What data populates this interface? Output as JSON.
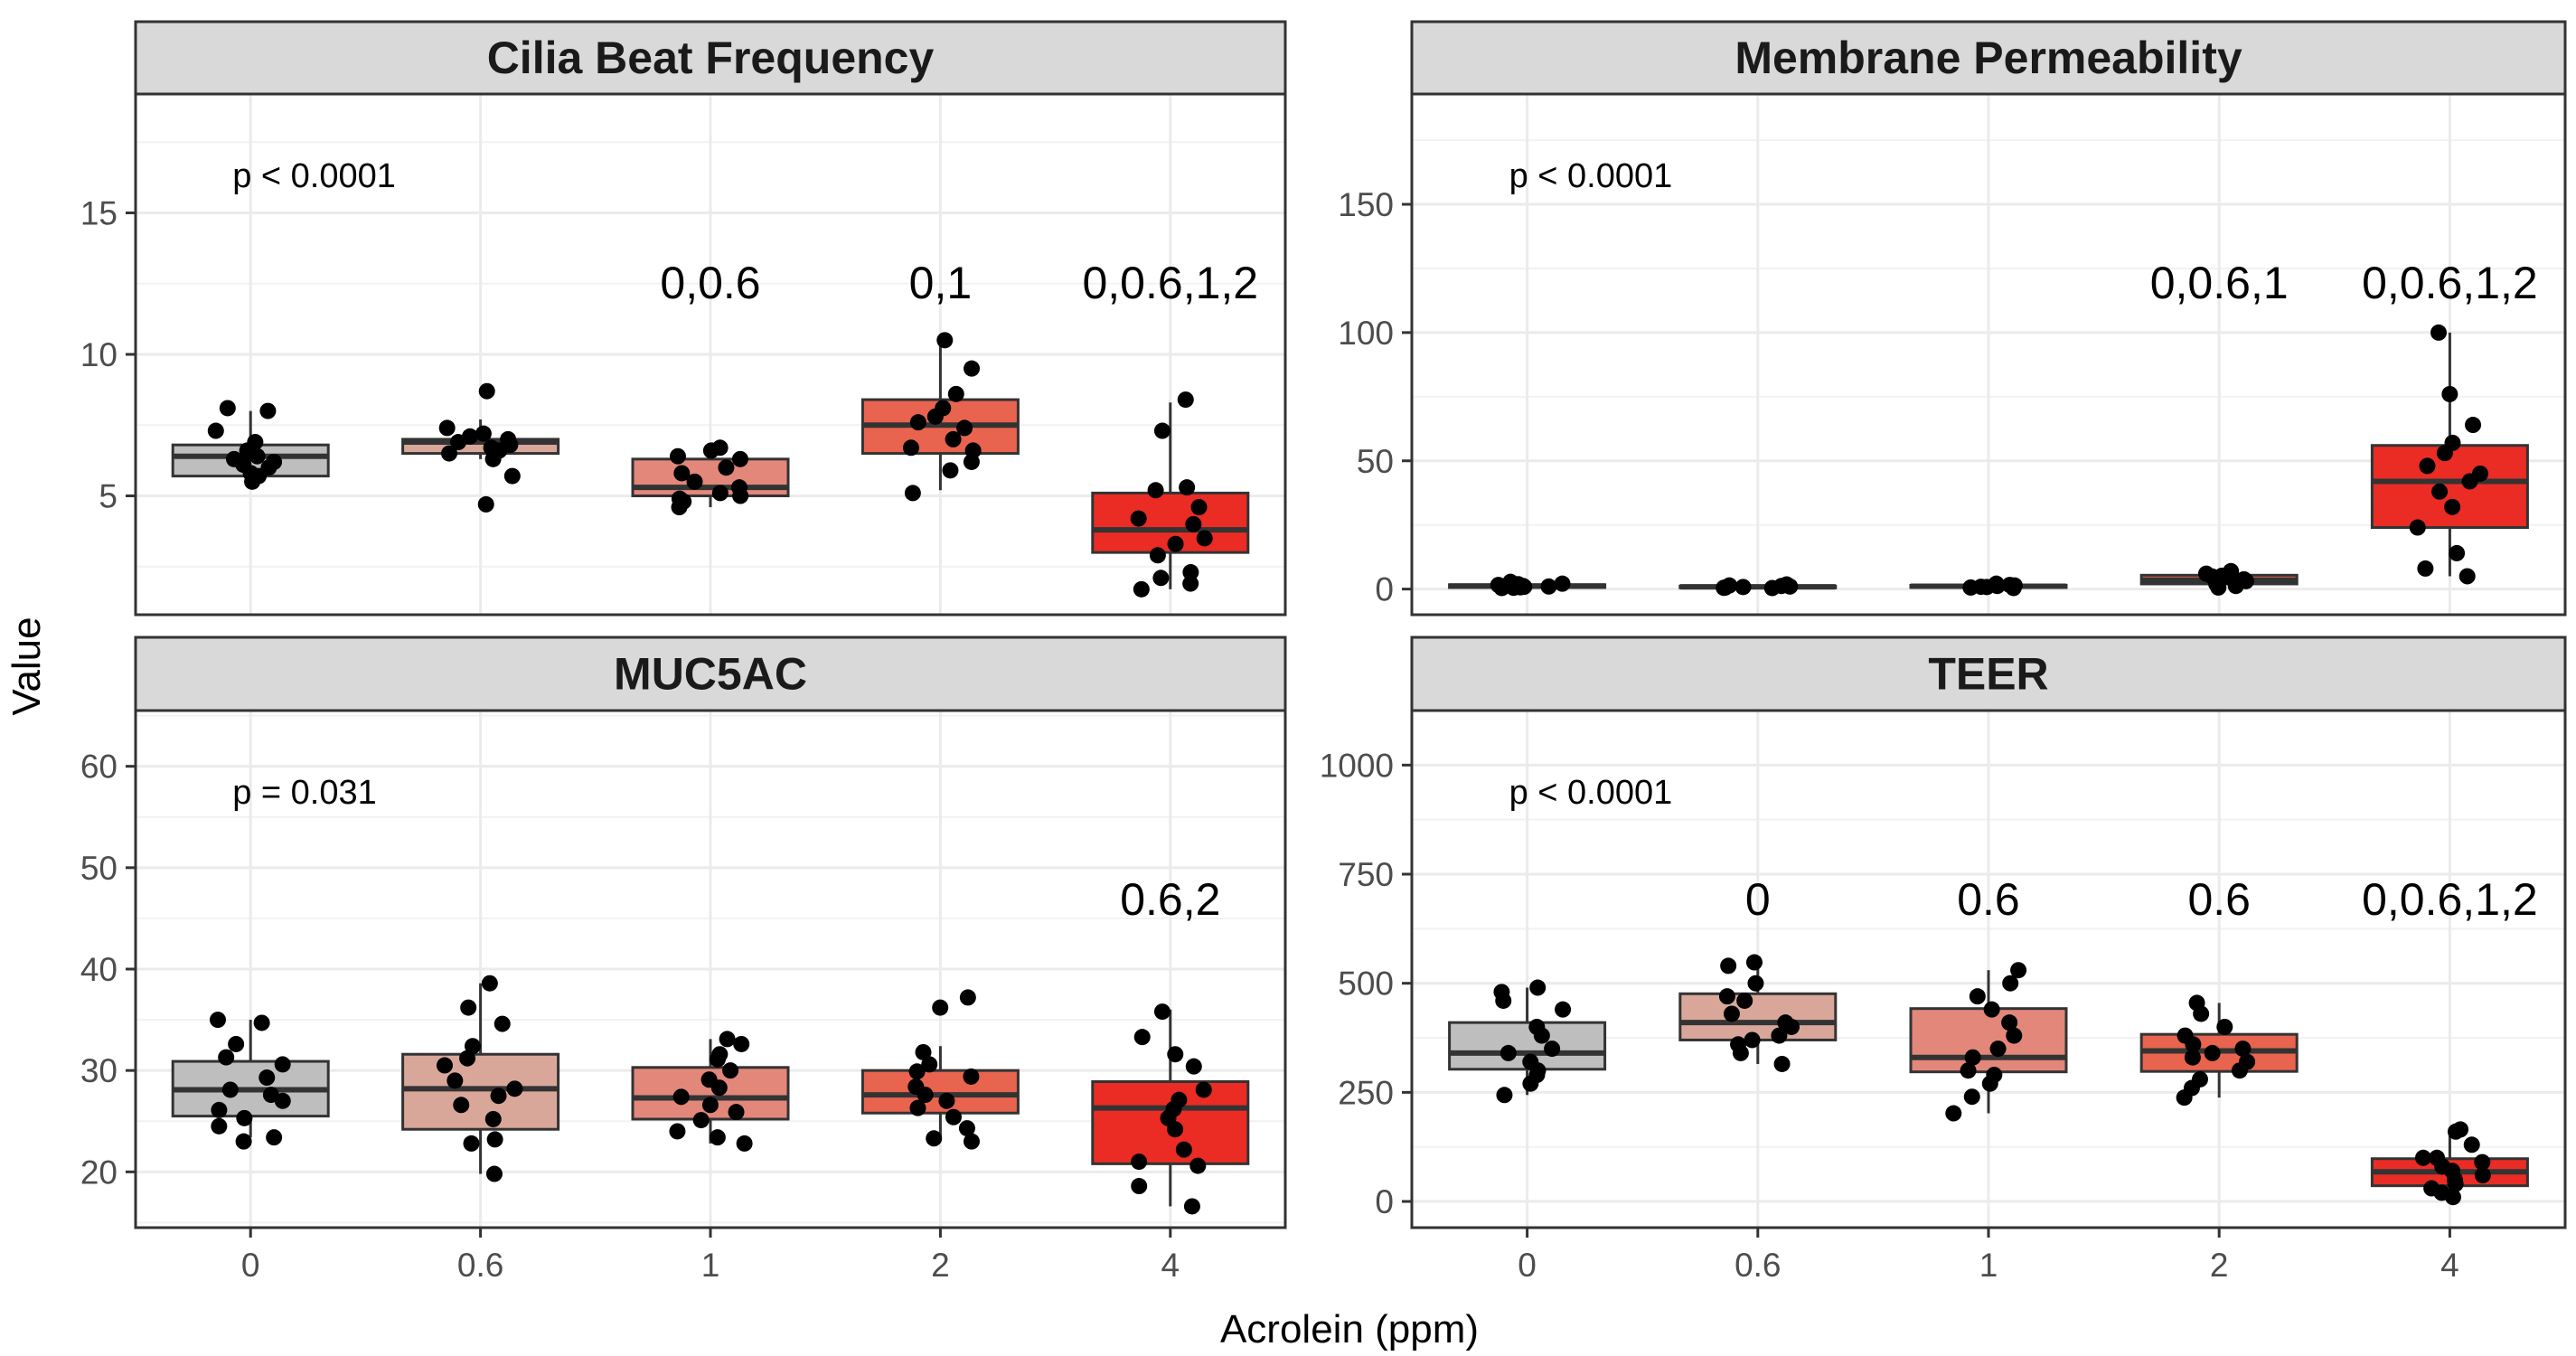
{
  "chart_data": {
    "type": "box",
    "xlabel": "Acrolein (ppm)",
    "ylabel": "Value",
    "categories": [
      "0",
      "0.6",
      "1",
      "2",
      "4"
    ],
    "fill_colors": [
      "#bebebe",
      "#d9a79a",
      "#e2877a",
      "#e8644f",
      "#ea2c25"
    ],
    "panels": [
      {
        "title": "Cilia Beat Frequency",
        "ylim": [
          0.8,
          19.2
        ],
        "yticks": [
          5,
          10,
          15
        ],
        "ytick_labels": [
          "5",
          "10",
          "15"
        ],
        "pvalue": "p < 0.0001",
        "group_labels": [
          "",
          "",
          "0,0.6",
          "0,1",
          "0,0.6,1,2"
        ],
        "boxes": [
          {
            "q1": 5.7,
            "median": 6.4,
            "q3": 6.8,
            "whisker_low": 5.4,
            "whisker_high": 8.0
          },
          {
            "q1": 6.5,
            "median": 6.9,
            "q3": 7.0,
            "whisker_low": 6.3,
            "whisker_high": 7.7
          },
          {
            "q1": 5.0,
            "median": 5.3,
            "q3": 6.3,
            "whisker_low": 4.6,
            "whisker_high": 6.7
          },
          {
            "q1": 6.5,
            "median": 7.5,
            "q3": 8.4,
            "whisker_low": 5.2,
            "whisker_high": 10.4
          },
          {
            "q1": 3.0,
            "median": 3.8,
            "q3": 5.1,
            "whisker_low": 1.7,
            "whisker_high": 8.3
          }
        ],
        "points": [
          [
            8.1,
            8.0,
            6.9,
            6.6,
            6.3,
            6.2,
            6.0,
            5.8,
            5.5,
            6.5,
            7.3,
            6.4,
            5.7,
            6.1
          ],
          [
            8.7,
            7.4,
            7.1,
            7.0,
            6.9,
            6.8,
            6.7,
            6.6,
            6.5,
            6.3,
            5.7,
            4.7,
            7.2
          ],
          [
            6.7,
            6.6,
            6.3,
            6.0,
            5.8,
            5.5,
            5.3,
            5.1,
            5.0,
            4.9,
            4.8,
            4.6,
            6.4
          ],
          [
            10.5,
            9.5,
            8.6,
            8.1,
            7.8,
            7.4,
            7.0,
            6.7,
            6.6,
            6.2,
            5.9,
            5.1,
            7.6
          ],
          [
            8.4,
            7.3,
            5.3,
            5.2,
            4.2,
            4.0,
            3.5,
            3.3,
            2.9,
            2.3,
            2.1,
            1.9,
            1.7,
            4.6
          ]
        ]
      },
      {
        "title": "Membrane Permeability",
        "ylim": [
          -10,
          193
        ],
        "yticks": [
          0,
          50,
          100,
          150
        ],
        "ytick_labels": [
          "0",
          "50",
          "100",
          "150"
        ],
        "pvalue": "p < 0.0001",
        "group_labels": [
          "",
          "",
          "",
          "0,0.6,1",
          "0,0.6,1,2"
        ],
        "boxes": [
          {
            "q1": 0.6,
            "median": 1.2,
            "q3": 1.7,
            "whisker_low": 0.3,
            "whisker_high": 2.8
          },
          {
            "q1": 0.5,
            "median": 0.9,
            "q3": 1.2,
            "whisker_low": 0.3,
            "whisker_high": 1.8
          },
          {
            "q1": 0.6,
            "median": 1.1,
            "q3": 1.5,
            "whisker_low": 0.3,
            "whisker_high": 2.1
          },
          {
            "q1": 2.0,
            "median": 3.5,
            "q3": 5.4,
            "whisker_low": 0.6,
            "whisker_high": 7.0
          },
          {
            "q1": 24,
            "median": 42,
            "q3": 56,
            "whisker_low": 5,
            "whisker_high": 100
          }
        ],
        "points": [
          [
            2.8,
            2.1,
            1.6,
            1.2,
            1.0,
            0.7,
            0.5,
            0.4,
            1.9,
            0.9
          ],
          [
            1.8,
            1.4,
            1.0,
            0.8,
            0.6,
            0.4,
            1.2,
            0.5
          ],
          [
            2.1,
            1.6,
            1.2,
            0.9,
            0.6,
            0.4,
            1.4,
            0.8
          ],
          [
            7.0,
            6.0,
            5.2,
            4.4,
            3.8,
            3.1,
            2.6,
            1.8,
            1.2,
            0.6,
            4.9,
            2.2
          ],
          [
            100,
            76,
            64,
            57,
            53,
            48,
            45,
            42,
            38,
            32,
            24,
            14,
            8,
            5
          ]
        ]
      },
      {
        "title": "MUC5AC",
        "ylim": [
          14.5,
          65.5
        ],
        "yticks": [
          20,
          30,
          40,
          50,
          60
        ],
        "ytick_labels": [
          "20",
          "30",
          "40",
          "50",
          "60"
        ],
        "pvalue": "p = 0.031",
        "group_labels": [
          "",
          "",
          "",
          "",
          "0.6,2"
        ],
        "boxes": [
          {
            "q1": 25.5,
            "median": 28.1,
            "q3": 30.9,
            "whisker_low": 23.4,
            "whisker_high": 35.0
          },
          {
            "q1": 24.2,
            "median": 28.2,
            "q3": 31.6,
            "whisker_low": 19.8,
            "whisker_high": 38.6
          },
          {
            "q1": 25.2,
            "median": 27.3,
            "q3": 30.3,
            "whisker_low": 22.8,
            "whisker_high": 33.1
          },
          {
            "q1": 25.8,
            "median": 27.6,
            "q3": 30.0,
            "whisker_low": 23.3,
            "whisker_high": 32.4
          },
          {
            "q1": 20.8,
            "median": 26.3,
            "q3": 28.9,
            "whisker_low": 16.6,
            "whisker_high": 36.0
          }
        ],
        "points": [
          [
            35.0,
            34.7,
            32.6,
            31.3,
            30.6,
            29.3,
            28.1,
            27.6,
            27.0,
            26.1,
            25.3,
            24.5,
            23.4,
            23.0
          ],
          [
            38.6,
            36.2,
            34.6,
            32.4,
            31.2,
            30.5,
            29.0,
            28.2,
            27.5,
            26.6,
            25.2,
            23.2,
            22.8,
            19.8
          ],
          [
            33.1,
            32.6,
            31.6,
            31.1,
            30.0,
            29.1,
            28.3,
            27.4,
            26.6,
            25.9,
            25.1,
            24.0,
            23.4,
            22.8
          ],
          [
            37.2,
            36.2,
            31.8,
            30.6,
            29.9,
            29.4,
            28.4,
            27.6,
            27.0,
            26.3,
            25.4,
            24.3,
            23.3,
            23.0
          ],
          [
            35.8,
            33.3,
            31.6,
            30.4,
            28.1,
            27.1,
            26.2,
            25.3,
            24.2,
            22.2,
            21.0,
            20.6,
            18.6,
            16.6
          ]
        ]
      },
      {
        "title": "TEER",
        "ylim": [
          -60,
          1125
        ],
        "yticks": [
          0,
          250,
          500,
          750,
          1000
        ],
        "ytick_labels": [
          "0",
          "250",
          "500",
          "750",
          "1000"
        ],
        "pvalue": "p < 0.0001",
        "group_labels": [
          "",
          "0",
          "0.6",
          "0.6",
          "0,0.6,1,2"
        ],
        "boxes": [
          {
            "q1": 303,
            "median": 340,
            "q3": 410,
            "whisker_low": 244,
            "whisker_high": 490
          },
          {
            "q1": 370,
            "median": 410,
            "q3": 476,
            "whisker_low": 315,
            "whisker_high": 548
          },
          {
            "q1": 297,
            "median": 330,
            "q3": 442,
            "whisker_low": 202,
            "whisker_high": 530
          },
          {
            "q1": 298,
            "median": 345,
            "q3": 383,
            "whisker_low": 238,
            "whisker_high": 455
          },
          {
            "q1": 36,
            "median": 68,
            "q3": 98,
            "whisker_low": 10,
            "whisker_high": 165
          }
        ],
        "points": [
          [
            490,
            480,
            460,
            440,
            380,
            350,
            340,
            320,
            300,
            290,
            270,
            244,
            400
          ],
          [
            548,
            540,
            500,
            470,
            460,
            410,
            400,
            380,
            370,
            360,
            340,
            315,
            430
          ],
          [
            530,
            500,
            470,
            440,
            380,
            350,
            330,
            300,
            290,
            270,
            240,
            202,
            410
          ],
          [
            455,
            430,
            400,
            380,
            360,
            350,
            340,
            330,
            320,
            300,
            280,
            260,
            238
          ],
          [
            165,
            160,
            130,
            100,
            90,
            80,
            70,
            60,
            50,
            40,
            30,
            20,
            10,
            100
          ]
        ]
      }
    ]
  }
}
